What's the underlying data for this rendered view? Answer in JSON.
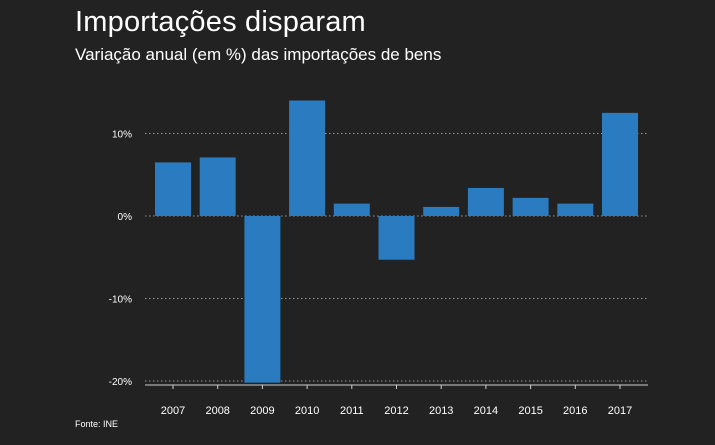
{
  "chart_data": {
    "type": "bar",
    "title": "Importações disparam",
    "subtitle": "Variação anual (em %) das importações de bens",
    "source": "Fonte: INE",
    "categories": [
      "2007",
      "2008",
      "2009",
      "2010",
      "2011",
      "2012",
      "2013",
      "2014",
      "2015",
      "2016",
      "2017"
    ],
    "values": [
      6.5,
      7.1,
      -20.2,
      14.0,
      1.5,
      -5.3,
      1.1,
      3.4,
      2.2,
      1.5,
      12.5
    ],
    "ylim": [
      -20,
      15
    ],
    "yticks": [
      {
        "value": 10,
        "label": "10%"
      },
      {
        "value": 0,
        "label": "0%"
      },
      {
        "value": -10,
        "label": "-10%"
      },
      {
        "value": -20,
        "label": "-20%"
      }
    ],
    "grid": "dotted horizontal",
    "bar_color": "#2a7bbf",
    "background": "#222222"
  }
}
